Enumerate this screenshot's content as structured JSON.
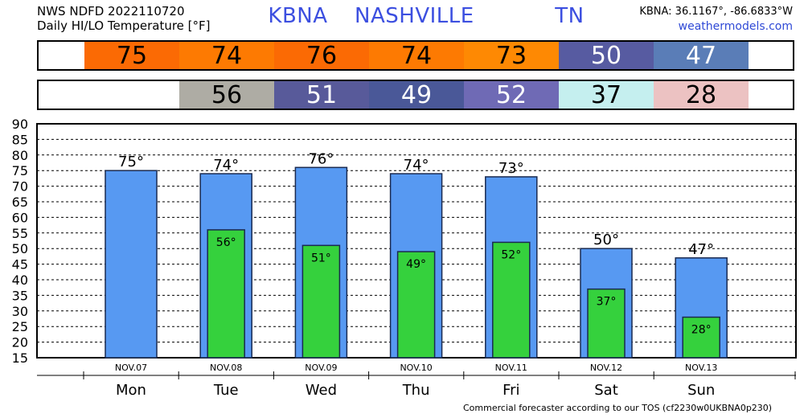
{
  "header": {
    "line1": "NWS NDFD 2022110720",
    "line2": "Daily HI/LO Temperature [°F]",
    "station": "KBNA  NASHVILLE      TN",
    "coords": "KBNA: 36.1167°, -86.6833°W",
    "site": "weathermodels.com"
  },
  "hi_strip": [
    {
      "value": "75",
      "color": "#fb6a04"
    },
    {
      "value": "74",
      "color": "#fd7a02"
    },
    {
      "value": "76",
      "color": "#fb6a04"
    },
    {
      "value": "74",
      "color": "#fd7a02"
    },
    {
      "value": "73",
      "color": "#fe8903"
    },
    {
      "value": "50",
      "color": "#575ba1"
    },
    {
      "value": "47",
      "color": "#5a7db7"
    }
  ],
  "lo_strip": [
    {
      "value": "",
      "color": "#ffffff"
    },
    {
      "value": "56",
      "color": "#aeaca4"
    },
    {
      "value": "51",
      "color": "#585a9a"
    },
    {
      "value": "49",
      "color": "#4a5898"
    },
    {
      "value": "52",
      "color": "#6f6ab5"
    },
    {
      "value": "37",
      "color": "#c5efef"
    },
    {
      "value": "28",
      "color": "#ecc2c2"
    }
  ],
  "footer": "Commercial forecaster according to our TOS (cf2230w0UKBNA0p230)",
  "chart_data": {
    "type": "bar",
    "categories": [
      "Mon",
      "Tue",
      "Wed",
      "Thu",
      "Fri",
      "Sat",
      "Sun"
    ],
    "dates": [
      "NOV.07",
      "NOV.08",
      "NOV.09",
      "NOV.10",
      "NOV.11",
      "NOV.12",
      "NOV.13"
    ],
    "series": [
      {
        "name": "",
        "values": [
          75,
          74,
          76,
          74,
          73,
          50,
          47
        ],
        "labels": [
          "75°",
          "74°",
          "76°",
          "74°",
          "73°",
          "50°",
          "47°"
        ],
        "color": "#5799f2"
      },
      {
        "name": "",
        "values": [
          null,
          56,
          51,
          49,
          52,
          37,
          28
        ],
        "labels": [
          "",
          "56°",
          "51°",
          "49°",
          "52°",
          "37°",
          "28°"
        ],
        "color": "#35d13d"
      }
    ],
    "ylim": [
      15,
      90
    ],
    "yticks": [
      15,
      20,
      25,
      30,
      35,
      40,
      45,
      50,
      55,
      60,
      65,
      70,
      75,
      80,
      85,
      90
    ],
    "grid": true
  }
}
